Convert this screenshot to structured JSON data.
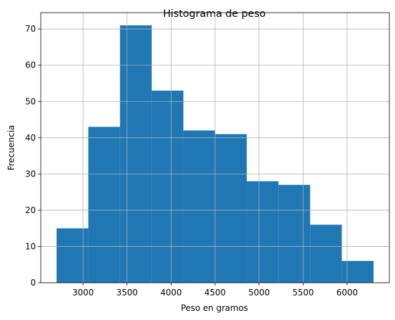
{
  "chart_data": {
    "type": "bar",
    "title": "Histograma de peso",
    "xlabel": "Peso en gramos",
    "ylabel": "Frecuencia",
    "bin_edges": [
      2700,
      3060,
      3420,
      3780,
      4140,
      4500,
      4860,
      5220,
      5580,
      5940,
      6300
    ],
    "values": [
      15,
      43,
      71,
      53,
      42,
      41,
      28,
      27,
      16,
      6
    ],
    "xlim": [
      2520,
      6480
    ],
    "ylim": [
      0,
      74.5
    ],
    "xticks": [
      3000,
      3500,
      4000,
      4500,
      5000,
      5500,
      6000
    ],
    "yticks": [
      0,
      10,
      20,
      30,
      40,
      50,
      60,
      70
    ],
    "grid": true,
    "bar_color": "#1f77b4",
    "grid_color": "#b0b0b0"
  }
}
